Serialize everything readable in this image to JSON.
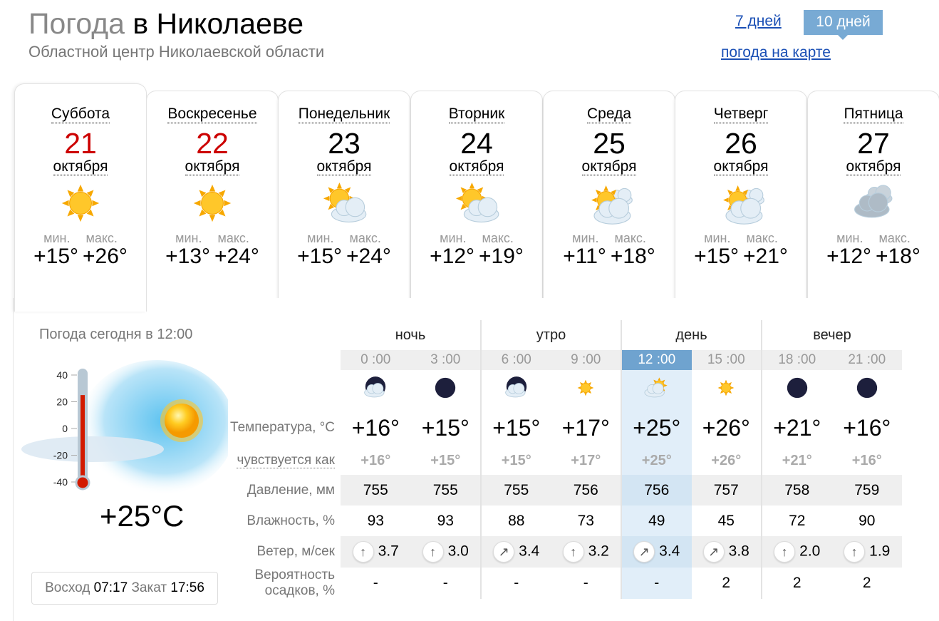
{
  "header": {
    "title_prefix": "Погода",
    "title_city": "в Николаеве",
    "subtitle": "Областной центр Николаевской области",
    "link_7days": "7 дней",
    "button_10days": "10 дней",
    "link_map": "погода на карте",
    "accent": "#78aad4"
  },
  "days": [
    {
      "name": "Суббота",
      "date": "21",
      "month": "октября",
      "icon": "sun",
      "min_label": "мин.",
      "max_label": "макс.",
      "min": "+15°",
      "max": "+26°",
      "weekend": true
    },
    {
      "name": "Воскресенье",
      "date": "22",
      "month": "октября",
      "icon": "sun",
      "min_label": "мин.",
      "max_label": "макс.",
      "min": "+13°",
      "max": "+24°",
      "weekend": true
    },
    {
      "name": "Понедельник",
      "date": "23",
      "month": "октября",
      "icon": "sun-cloud",
      "min_label": "мин.",
      "max_label": "макс.",
      "min": "+15°",
      "max": "+24°"
    },
    {
      "name": "Вторник",
      "date": "24",
      "month": "октября",
      "icon": "sun-cloud",
      "min_label": "мин.",
      "max_label": "макс.",
      "min": "+12°",
      "max": "+19°"
    },
    {
      "name": "Среда",
      "date": "25",
      "month": "октября",
      "icon": "sun-clouds",
      "min_label": "мин.",
      "max_label": "макс.",
      "min": "+11°",
      "max": "+18°"
    },
    {
      "name": "Четверг",
      "date": "26",
      "month": "октября",
      "icon": "sun-clouds",
      "min_label": "мин.",
      "max_label": "макс.",
      "min": "+15°",
      "max": "+21°"
    },
    {
      "name": "Пятница",
      "date": "27",
      "month": "октября",
      "icon": "overcast",
      "min_label": "мин.",
      "max_label": "макс.",
      "min": "+12°",
      "max": "+18°"
    }
  ],
  "today": {
    "label": "Погода сегодня в 12:00",
    "temp": "+25°C",
    "thermo_scale": [
      "40",
      "20",
      "0",
      "-20",
      "-40"
    ],
    "thermo_value": 25,
    "sunrise_label": "Восход",
    "sunrise": "07:17",
    "sunset_label": "Закат",
    "sunset": "17:56"
  },
  "table": {
    "periods": [
      "ночь",
      "утро",
      "день",
      "вечер"
    ],
    "row_labels": {
      "temp": "Температура, °С",
      "feels": "чувствуется как",
      "pressure": "Давление, мм",
      "humidity": "Влажность, %",
      "wind": "Ветер, м/сек",
      "precip1": "Вероятность",
      "precip2": "осадков, %"
    },
    "highlight_index": 4,
    "hours": [
      {
        "time": "0 :00",
        "icon": "moon-cloud",
        "temp": "+16°",
        "feels": "+16°",
        "pressure": "755",
        "humidity": "93",
        "wind_dir": "↑",
        "wind": "3.7",
        "precip": "-"
      },
      {
        "time": "3 :00",
        "icon": "moon",
        "temp": "+15°",
        "feels": "+15°",
        "pressure": "755",
        "humidity": "93",
        "wind_dir": "↑",
        "wind": "3.0",
        "precip": "-"
      },
      {
        "time": "6 :00",
        "icon": "moon-cloud",
        "temp": "+15°",
        "feels": "+15°",
        "pressure": "755",
        "humidity": "88",
        "wind_dir": "↗",
        "wind": "3.4",
        "precip": "-"
      },
      {
        "time": "9 :00",
        "icon": "sun-small",
        "temp": "+17°",
        "feels": "+17°",
        "pressure": "756",
        "humidity": "73",
        "wind_dir": "↑",
        "wind": "3.2",
        "precip": "-"
      },
      {
        "time": "12 :00",
        "icon": "sun-cloud-small",
        "temp": "+25°",
        "feels": "+25°",
        "pressure": "756",
        "humidity": "49",
        "wind_dir": "↗",
        "wind": "3.4",
        "precip": "-"
      },
      {
        "time": "15 :00",
        "icon": "sun-small",
        "temp": "+26°",
        "feels": "+26°",
        "pressure": "757",
        "humidity": "45",
        "wind_dir": "↗",
        "wind": "3.8",
        "precip": "2"
      },
      {
        "time": "18 :00",
        "icon": "moon",
        "temp": "+21°",
        "feels": "+21°",
        "pressure": "758",
        "humidity": "72",
        "wind_dir": "↑",
        "wind": "2.0",
        "precip": "2"
      },
      {
        "time": "21 :00",
        "icon": "moon",
        "temp": "+16°",
        "feels": "+16°",
        "pressure": "759",
        "humidity": "90",
        "wind_dir": "↑",
        "wind": "1.9",
        "precip": "2"
      }
    ]
  }
}
